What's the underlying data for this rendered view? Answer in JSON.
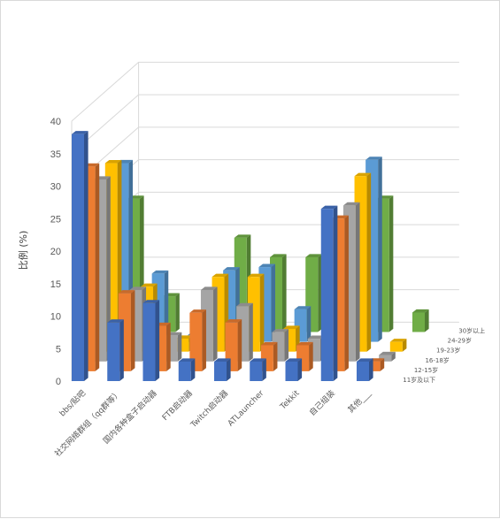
{
  "chart_data": {
    "type": "bar",
    "style": "3d-clustered-column",
    "ylabel": "比例 (%)",
    "ylim": [
      0,
      40
    ],
    "yticks": [
      0,
      5,
      10,
      15,
      20,
      25,
      30,
      35,
      40
    ],
    "grid": true,
    "categories": [
      "bbs/贴吧",
      "社交网络群组（qq群等）",
      "国内各种盒子启动器",
      "FTB启动器",
      "Twitch启动器",
      "ATLauncher",
      "Tekkit",
      "自己组装",
      "其他___"
    ],
    "series": [
      {
        "name": "11岁及以下",
        "color": "#4472c4",
        "values": [
          38,
          9,
          12,
          3,
          3,
          3,
          3,
          26.5,
          3
        ]
      },
      {
        "name": "12-15岁",
        "color": "#ed7d31",
        "values": [
          31.5,
          12,
          7,
          9,
          7.5,
          4,
          4,
          23.5,
          1.5
        ]
      },
      {
        "name": "16-18岁",
        "color": "#a5a5a5",
        "values": [
          28,
          11,
          4,
          11,
          8.5,
          4.5,
          3.5,
          24,
          1
        ]
      },
      {
        "name": "19-23岁",
        "color": "#ffc000",
        "values": [
          29,
          10,
          2,
          11.5,
          11.5,
          3.5,
          0,
          27,
          1.5
        ]
      },
      {
        "name": "24-29岁",
        "color": "#5b9bd5",
        "values": [
          27.5,
          10.5,
          1,
          11,
          11.5,
          5,
          0.5,
          28,
          0
        ]
      },
      {
        "name": "30岁以上",
        "color": "#70ad47",
        "values": [
          20.5,
          5.5,
          1,
          14.5,
          11.5,
          11.5,
          0,
          20.5,
          3
        ]
      }
    ]
  }
}
